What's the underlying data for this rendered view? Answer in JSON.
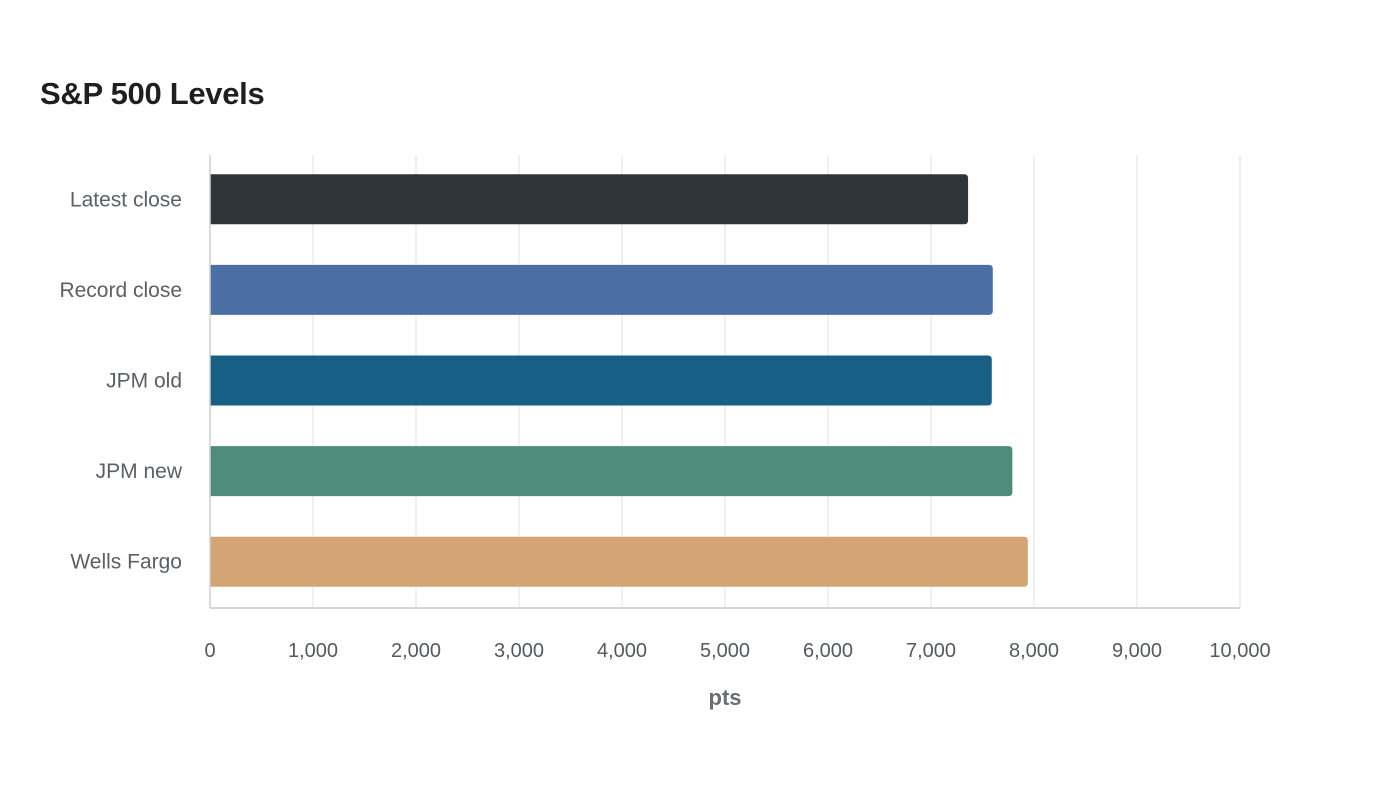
{
  "chart_data": {
    "type": "bar",
    "orientation": "horizontal",
    "title": "S&P 500 Levels",
    "xlabel": "pts",
    "ylabel": "",
    "categories": [
      "Latest close",
      "Record close",
      "JPM old",
      "JPM new",
      "Wells Fargo"
    ],
    "values": [
      7360,
      7600,
      7590,
      7790,
      7940
    ],
    "colors": [
      "#2e3538",
      "#4b6fa5",
      "#185f86",
      "#4f8c7b",
      "#d3a574"
    ],
    "xlim": [
      0,
      10000
    ],
    "xticks": [
      "0",
      "1,000",
      "2,000",
      "3,000",
      "4,000",
      "5,000",
      "6,000",
      "7,000",
      "8,000",
      "9,000",
      "10,000"
    ],
    "grid": true,
    "legend": "none"
  }
}
